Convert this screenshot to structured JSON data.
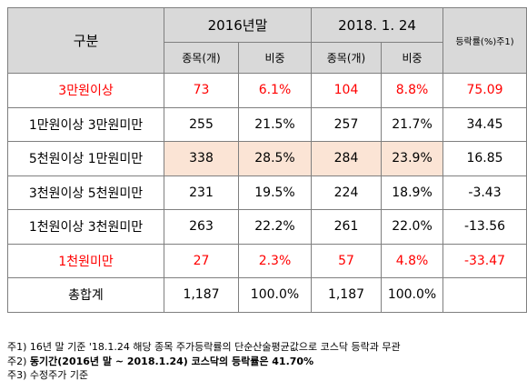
{
  "header": {
    "category": "구분",
    "period1": "2016년말",
    "period2": "2018. 1. 24",
    "rate": "등락률(%)주1)",
    "col_count": "종목(개)",
    "col_share": "비중"
  },
  "rows": [
    {
      "category": "3만원이상",
      "count1": "73",
      "share1": "6.1%",
      "count2": "104",
      "share2": "8.8%",
      "rate": "75.09"
    },
    {
      "category": "1만원이상 3만원미만",
      "count1": "255",
      "share1": "21.5%",
      "count2": "257",
      "share2": "21.7%",
      "rate": "34.45"
    },
    {
      "category": "5천원이상 1만원미만",
      "count1": "338",
      "share1": "28.5%",
      "count2": "284",
      "share2": "23.9%",
      "rate": "16.85"
    },
    {
      "category": "3천원이상 5천원미만",
      "count1": "231",
      "share1": "19.5%",
      "count2": "224",
      "share2": "18.9%",
      "rate": "-3.43"
    },
    {
      "category": "1천원이상 3천원미만",
      "count1": "263",
      "share1": "22.2%",
      "count2": "261",
      "share2": "22.0%",
      "rate": "-13.56"
    },
    {
      "category": "1천원미만",
      "count1": "27",
      "share1": "2.3%",
      "count2": "57",
      "share2": "4.8%",
      "rate": "-33.47"
    },
    {
      "category": "총합계",
      "count1": "1,187",
      "share1": "100.0%",
      "count2": "1,187",
      "share2": "100.0%",
      "rate": ""
    }
  ],
  "notes": {
    "n1": "주1) 16년 말 기준 '18.1.24 해당 종목 주가등락률의 단순산술평균값으로 코스닥 등락과 무관",
    "n2_prefix": "주2) ",
    "n2_bold": "동기간(2016년 말 ~ 2018.1.24) 코스닥의 등락률은 41.70%",
    "n3": "주3) 수정주가 기준"
  },
  "colors": {
    "header_bg": "#d9d9d9",
    "highlight_bg": "#fbe4d5",
    "emphasis_text": "#ff0000"
  }
}
